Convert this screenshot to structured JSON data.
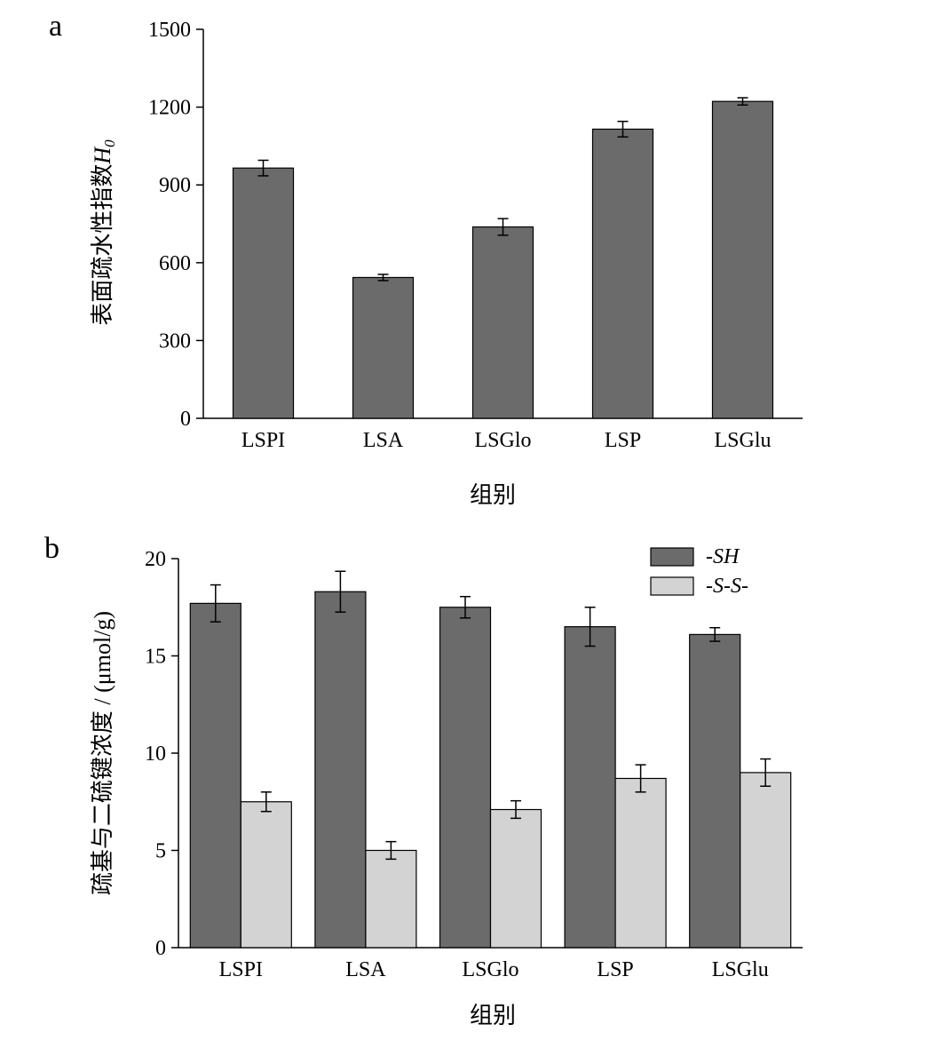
{
  "chart_data": [
    {
      "panel": "a",
      "type": "bar",
      "categories": [
        "LSPI",
        "LSA",
        "LSGlo",
        "LSP",
        "LSGlu"
      ],
      "series": [
        {
          "values": [
            965,
            543,
            738,
            1115,
            1222
          ],
          "errors": [
            30,
            12,
            32,
            30,
            14
          ],
          "color": "#6b6b6b"
        }
      ],
      "xlabel": "组别",
      "ylabel": "表面疏水性指数",
      "ylabel_symbol": "H",
      "ylabel_subscript": "0",
      "ylim": [
        0,
        1500
      ],
      "yticks": [
        0,
        300,
        600,
        900,
        1200,
        1500
      ],
      "grid": false
    },
    {
      "panel": "b",
      "type": "bar",
      "categories": [
        "LSPI",
        "LSA",
        "LSGlo",
        "LSP",
        "LSGlu"
      ],
      "series": [
        {
          "name": "-SH",
          "values": [
            17.7,
            18.3,
            17.5,
            16.5,
            16.1
          ],
          "errors": [
            0.95,
            1.05,
            0.55,
            1.0,
            0.35
          ],
          "color": "#6b6b6b"
        },
        {
          "name": "-S-S-",
          "values": [
            7.5,
            5.0,
            7.1,
            8.7,
            9.0
          ],
          "errors": [
            0.5,
            0.45,
            0.45,
            0.7,
            0.7
          ],
          "color": "#d3d3d3"
        }
      ],
      "xlabel": "组别",
      "ylabel": "疏基与二硫键浓度 / (μmol/g)",
      "ylim": [
        0,
        20
      ],
      "yticks": [
        0,
        5,
        10,
        15,
        20
      ],
      "legend": "top-right",
      "grid": false
    }
  ]
}
